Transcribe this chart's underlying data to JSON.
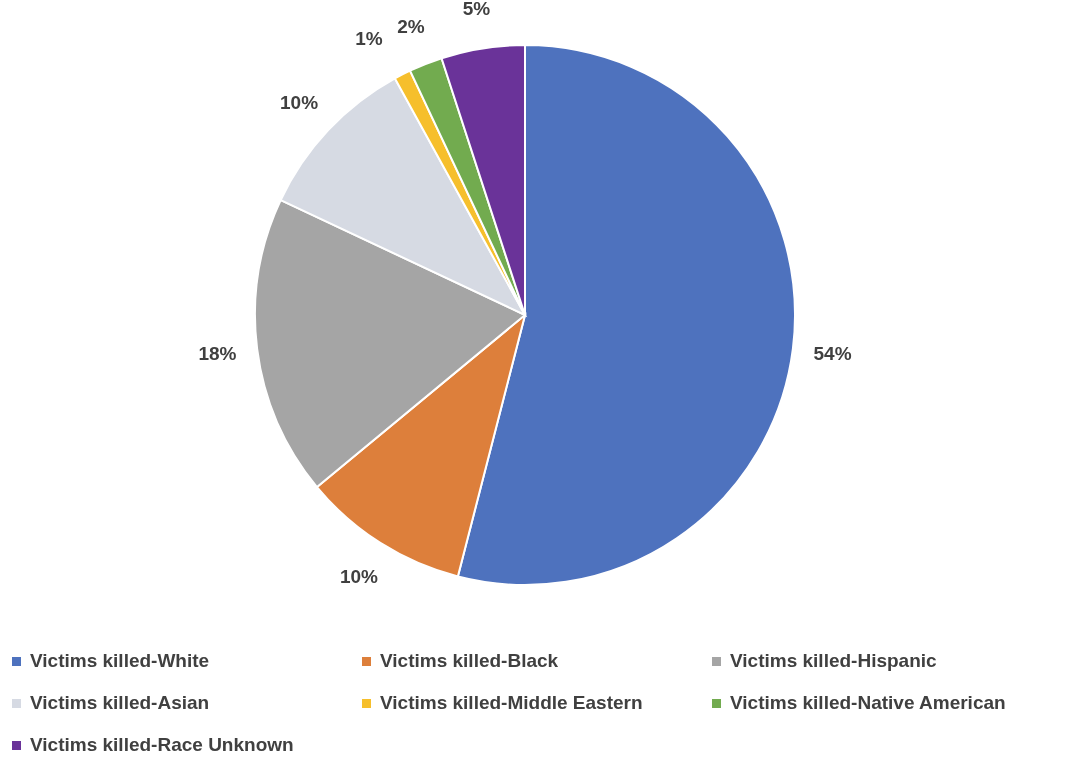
{
  "chart_data": {
    "type": "pie",
    "categories": [
      "Victims killed-White",
      "Victims killed-Black",
      "Victims killed-Hispanic",
      "Victims killed-Asian",
      "Victims killed-Middle Eastern",
      "Victims killed-Native American",
      "Victims killed-Race Unknown"
    ],
    "values": [
      54,
      10,
      18,
      10,
      1,
      2,
      5
    ],
    "colors": [
      "#4e72be",
      "#dd7f3b",
      "#a5a5a5",
      "#d6dae3",
      "#f6bf2c",
      "#72ab4f",
      "#6a3399"
    ],
    "value_labels": [
      "54%",
      "10%",
      "18%",
      "10%",
      "1%",
      "2%",
      "5%"
    ],
    "legend": "bottom"
  }
}
